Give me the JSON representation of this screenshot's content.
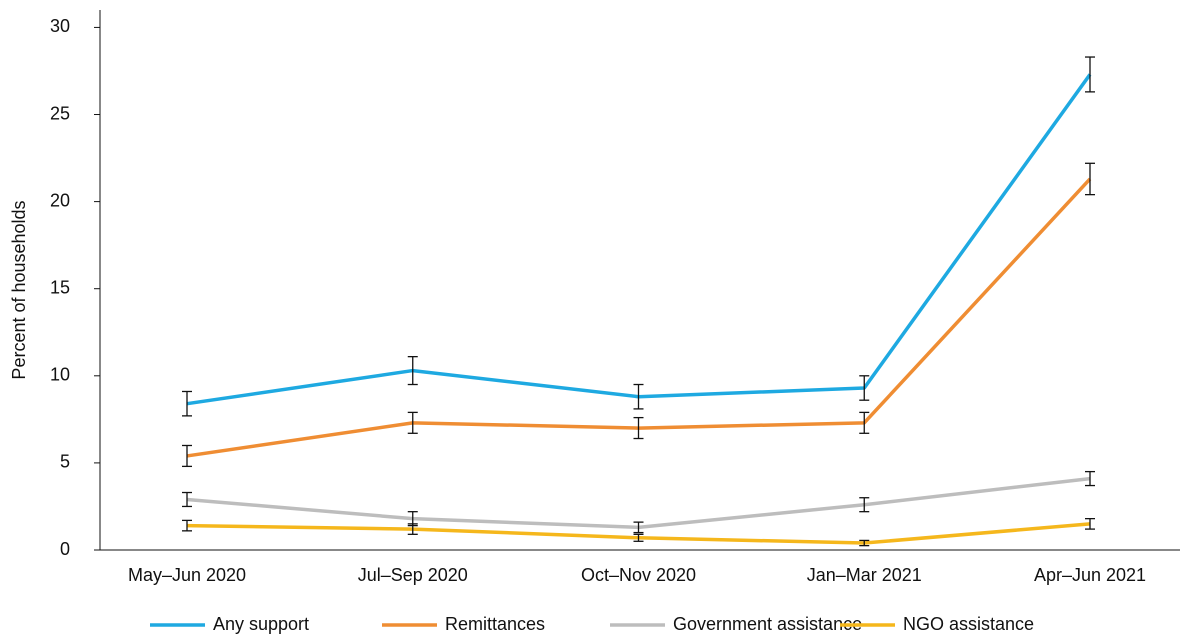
{
  "chart_data": {
    "type": "line",
    "y_label": "Percent of households",
    "categories": [
      "May–Jun 2020",
      "Jul–Sep 2020",
      "Oct–Nov 2020",
      "Jan–Mar 2021",
      "Apr–Jun 2021"
    ],
    "series": [
      {
        "name": "Any support",
        "color": "#1ea9e1",
        "values": [
          8.4,
          10.3,
          8.8,
          9.3,
          27.3
        ],
        "errors": [
          0.7,
          0.8,
          0.7,
          0.7,
          1.0
        ]
      },
      {
        "name": "Remittances",
        "color": "#ef8d33",
        "values": [
          5.4,
          7.3,
          7.0,
          7.3,
          21.3
        ],
        "errors": [
          0.6,
          0.6,
          0.6,
          0.6,
          0.9
        ]
      },
      {
        "name": "Government assistance",
        "color": "#bdbdbd",
        "values": [
          2.9,
          1.8,
          1.3,
          2.6,
          4.1
        ],
        "errors": [
          0.4,
          0.4,
          0.3,
          0.4,
          0.4
        ]
      },
      {
        "name": "NGO assistance",
        "color": "#f5b71c",
        "values": [
          1.4,
          1.2,
          0.7,
          0.4,
          1.5
        ],
        "errors": [
          0.3,
          0.3,
          0.2,
          0.15,
          0.3
        ]
      }
    ],
    "ylim": [
      0,
      31
    ],
    "yticks": [
      0,
      5,
      10,
      15,
      20,
      25,
      30
    ],
    "error_bars": true
  }
}
